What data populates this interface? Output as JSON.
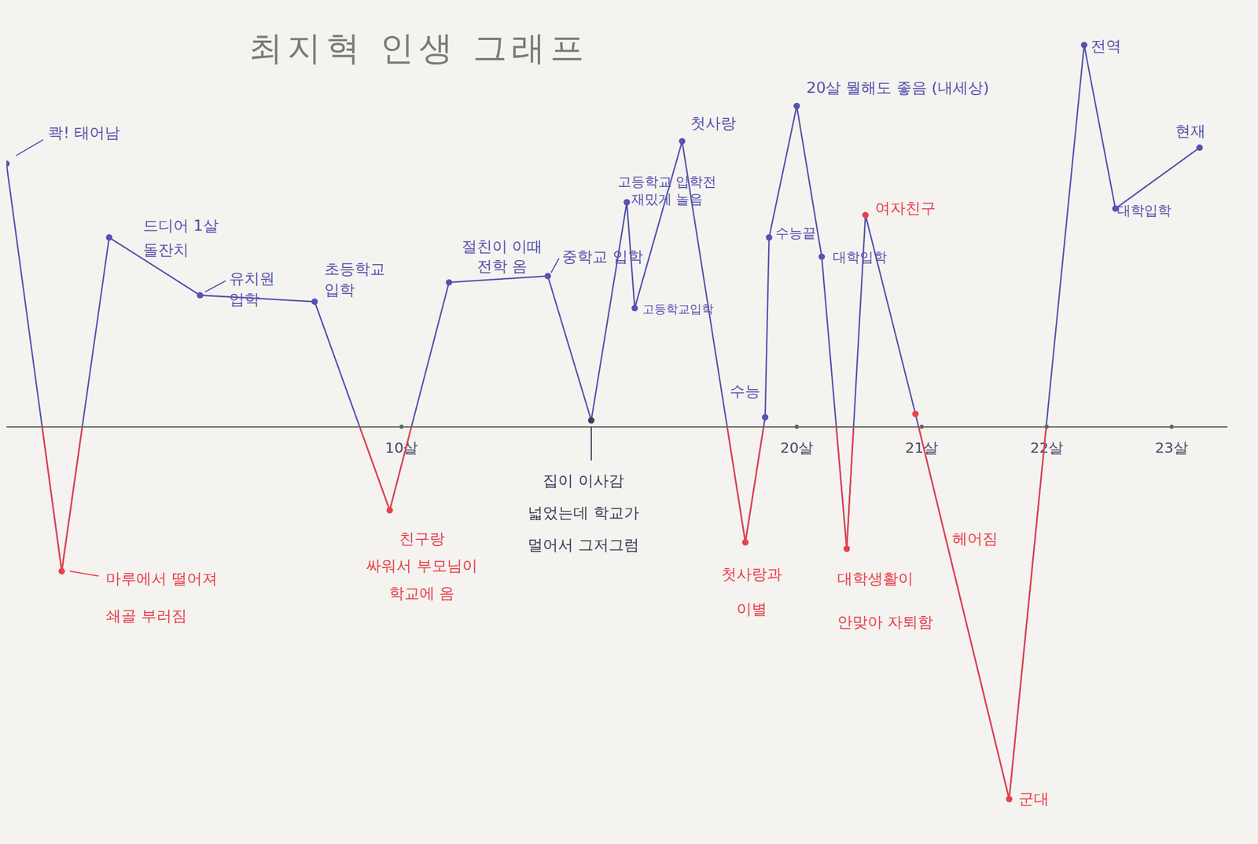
{
  "chart_data": {
    "type": "line",
    "title": "최지혁 인생 그래프",
    "x": [
      0,
      1.4,
      2.6,
      4.9,
      7.8,
      9.7,
      11.2,
      13.7,
      14.8,
      15.7,
      15.9,
      17.1,
      18.7,
      19.2,
      19.3,
      20.0,
      20.2,
      20.4,
      20.55,
      20.95,
      21.7,
      22.3,
      22.55,
      23.1
    ],
    "xlim": [
      0,
      23.2
    ],
    "xticks": [
      {
        "value": 10,
        "label": "10살"
      },
      {
        "value": 20,
        "label": "20살"
      },
      {
        "value": 21,
        "label": "21살"
      },
      {
        "value": 22,
        "label": "22살"
      },
      {
        "value": 23,
        "label": "23살"
      }
    ],
    "ylim": [
      -12,
      12
    ],
    "tick_labels": "x",
    "grid": false,
    "series": [
      {
        "color": "#5552b0",
        "marker": "circle",
        "line_style": "solid",
        "values": [
          8.2,
          -4.5,
          5.9,
          4.1,
          3.9,
          -2.6,
          4.5,
          4.7,
          0.2,
          7.0,
          3.7,
          8.9,
          -3.6,
          0.3,
          5.9,
          10.0,
          5.3,
          -3.8,
          6.6,
          0.4,
          -11.6,
          11.9,
          6.8,
          8.7
        ],
        "colors": [
          "#5552b0",
          "#e8404c",
          "#5552b0",
          "#5552b0",
          "#5552b0",
          "#e8404c",
          "#5552b0",
          "#5552b0",
          "#3d3d55",
          "#5552b0",
          "#5552b0",
          "#5552b0",
          "#e8404c",
          "#5552b0",
          "#5552b0",
          "#5552b0",
          "#5552b0",
          "#e8404c",
          "#e8404c",
          "#e8404c",
          "#e8404c",
          "#5552b0",
          "#5552b0",
          "#5552b0"
        ],
        "annotations": [
          "콱! 태어남",
          "마루에서 떨어져\n쇄골 부러짐",
          "드디어 1살\n돌잔치",
          "유치원\n입학",
          "초등학교\n입학",
          "친구랑\n싸워서 부모님이\n학교에 옴",
          "절친이 이때\n전학 옴",
          "중학교 입학",
          "집이 이사감\n넓었는데 학교가\n멀어서 그저그럼",
          "고등학교 입학전\n재밌게 놀음",
          "고등학교입학",
          "첫사랑",
          "첫사랑과\n이별",
          "수능",
          "수능끝",
          "20살 뭘해도 좋음 (내세상)",
          "대학입학",
          "대학생활이\n안맞아 자퇴함",
          "여자친구",
          "헤어짐",
          "군대",
          "전역",
          "대학입학",
          "현재"
        ]
      }
    ]
  }
}
